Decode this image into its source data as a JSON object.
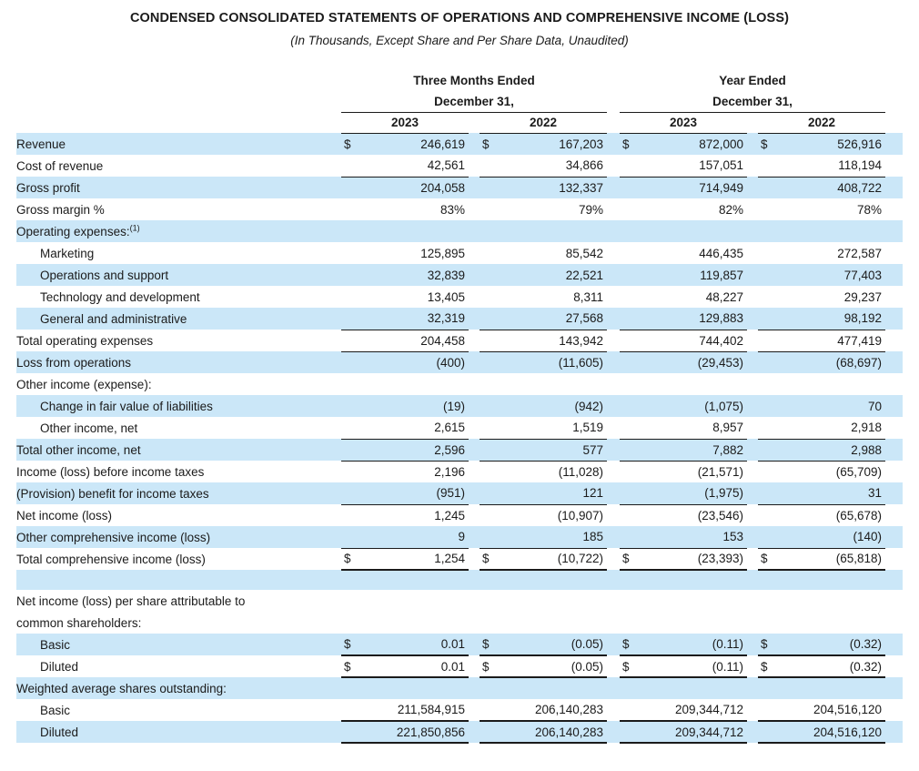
{
  "page": {
    "title": "CONDENSED CONSOLIDATED STATEMENTS OF OPERATIONS AND COMPREHENSIVE INCOME (LOSS)",
    "subtitle": "(In Thousands, Except Share and Per Share Data, Unaudited)"
  },
  "colors": {
    "stripe": "#cbe7f8",
    "text": "#1b1b1b",
    "rule": "#1b1b1b"
  },
  "table": {
    "column_groups": [
      {
        "period": "Three Months Ended",
        "date": "December 31,",
        "years": [
          "2023",
          "2022"
        ]
      },
      {
        "period": "Year Ended",
        "date": "December 31,",
        "years": [
          "2023",
          "2022"
        ]
      }
    ],
    "rows": [
      {
        "label": "Revenue",
        "shaded": true,
        "dollar": true,
        "values": [
          "246,619",
          "167,203",
          "872,000",
          "526,916"
        ]
      },
      {
        "label": "Cost of revenue",
        "values": [
          "42,561",
          "34,866",
          "157,051",
          "118,194"
        ],
        "rule": "bottom"
      },
      {
        "label": "Gross profit",
        "shaded": true,
        "values": [
          "204,058",
          "132,337",
          "714,949",
          "408,722"
        ]
      },
      {
        "label": "Gross margin %",
        "values": [
          "83%",
          "79%",
          "82%",
          "78%"
        ]
      },
      {
        "label": "Operating expenses:",
        "sup": "(1)",
        "shaded": true
      },
      {
        "label": "Marketing",
        "indent": 1,
        "values": [
          "125,895",
          "85,542",
          "446,435",
          "272,587"
        ]
      },
      {
        "label": "Operations and support",
        "indent": 1,
        "shaded": true,
        "values": [
          "32,839",
          "22,521",
          "119,857",
          "77,403"
        ]
      },
      {
        "label": "Technology and development",
        "indent": 1,
        "values": [
          "13,405",
          "8,311",
          "48,227",
          "29,237"
        ]
      },
      {
        "label": "General and administrative",
        "indent": 1,
        "shaded": true,
        "values": [
          "32,319",
          "27,568",
          "129,883",
          "98,192"
        ],
        "rule": "bottom"
      },
      {
        "label": "Total operating expenses",
        "values": [
          "204,458",
          "143,942",
          "744,402",
          "477,419"
        ],
        "rule": "bottom"
      },
      {
        "label": "Loss from operations",
        "shaded": true,
        "values": [
          "(400)",
          "(11,605)",
          "(29,453)",
          "(68,697)"
        ]
      },
      {
        "label": "Other income (expense):"
      },
      {
        "label": "Change in fair value of liabilities",
        "indent": 1,
        "shaded": true,
        "values": [
          "(19)",
          "(942)",
          "(1,075)",
          "70"
        ]
      },
      {
        "label": "Other income, net",
        "indent": 1,
        "values": [
          "2,615",
          "1,519",
          "8,957",
          "2,918"
        ],
        "rule": "bottom"
      },
      {
        "label": "Total other income, net",
        "shaded": true,
        "values": [
          "2,596",
          "577",
          "7,882",
          "2,988"
        ],
        "rule": "bottom"
      },
      {
        "label": "Income (loss) before income taxes",
        "values": [
          "2,196",
          "(11,028)",
          "(21,571)",
          "(65,709)"
        ]
      },
      {
        "label": "(Provision) benefit for income taxes",
        "shaded": true,
        "values": [
          "(951)",
          "121",
          "(1,975)",
          "31"
        ],
        "rule": "bottom"
      },
      {
        "label": "Net income (loss)",
        "values": [
          "1,245",
          "(10,907)",
          "(23,546)",
          "(65,678)"
        ]
      },
      {
        "label": "Other comprehensive income (loss)",
        "shaded": true,
        "values": [
          "9",
          "185",
          "153",
          "(140)"
        ],
        "rule": "bottom"
      },
      {
        "label": "Total comprehensive income (loss)",
        "dollar": true,
        "values": [
          "1,254",
          "(10,722)",
          "(23,393)",
          "(65,818)"
        ],
        "rule": "final"
      },
      {
        "spacer": true,
        "shaded": true
      },
      {
        "label": "Net income (loss) per share attributable to"
      },
      {
        "label": "common shareholders:"
      },
      {
        "label": "Basic",
        "indent": 1,
        "shaded": true,
        "dollar": true,
        "values": [
          "0.01",
          "(0.05)",
          "(0.11)",
          "(0.32)"
        ],
        "rule": "final"
      },
      {
        "label": "Diluted",
        "indent": 1,
        "dollar": true,
        "values": [
          "0.01",
          "(0.05)",
          "(0.11)",
          "(0.32)"
        ],
        "rule": "final"
      },
      {
        "label": "Weighted average shares outstanding:",
        "shaded": true
      },
      {
        "label": "Basic",
        "indent": 1,
        "values": [
          "211,584,915",
          "206,140,283",
          "209,344,712",
          "204,516,120"
        ],
        "rule": "final"
      },
      {
        "label": "Diluted",
        "indent": 1,
        "shaded": true,
        "values": [
          "221,850,856",
          "206,140,283",
          "209,344,712",
          "204,516,120"
        ],
        "rule": "final"
      }
    ]
  }
}
